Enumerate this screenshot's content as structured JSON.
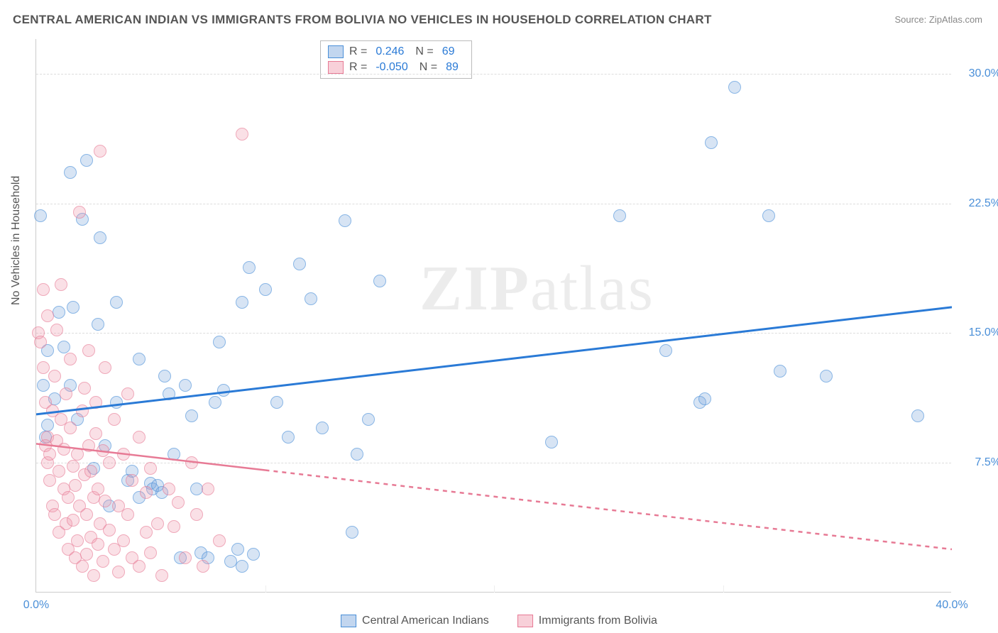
{
  "title": "CENTRAL AMERICAN INDIAN VS IMMIGRANTS FROM BOLIVIA NO VEHICLES IN HOUSEHOLD CORRELATION CHART",
  "source": "Source: ZipAtlas.com",
  "ylabel": "No Vehicles in Household",
  "watermark_a": "ZIP",
  "watermark_b": "atlas",
  "chart": {
    "type": "scatter",
    "xlim": [
      0,
      40
    ],
    "ylim": [
      0,
      32
    ],
    "xticks": [
      {
        "v": 0,
        "label": "0.0%"
      },
      {
        "v": 40,
        "label": "40.0%"
      }
    ],
    "xtick_minor": [
      10,
      20,
      30
    ],
    "yticks": [
      {
        "v": 7.5,
        "label": "7.5%"
      },
      {
        "v": 15,
        "label": "15.0%"
      },
      {
        "v": 22.5,
        "label": "22.5%"
      },
      {
        "v": 30,
        "label": "30.0%"
      }
    ],
    "background_color": "#ffffff",
    "grid_color": "#dddddd",
    "marker_size": 18,
    "series": [
      {
        "name": "Central American Indians",
        "key": "blue",
        "fill": "rgba(120,165,220,0.45)",
        "stroke": "#4a8fd8",
        "R": "0.246",
        "N": "69",
        "regression": {
          "x1": 0,
          "y1": 10.3,
          "x2": 40,
          "y2": 16.5,
          "solid_to": 40,
          "color": "#2a7ad6",
          "width": 3
        },
        "points": [
          [
            0.2,
            21.8
          ],
          [
            0.5,
            14.0
          ],
          [
            0.3,
            12.0
          ],
          [
            0.4,
            9.0
          ],
          [
            0.5,
            9.7
          ],
          [
            0.8,
            11.2
          ],
          [
            1.0,
            16.2
          ],
          [
            1.2,
            14.2
          ],
          [
            1.5,
            24.3
          ],
          [
            1.5,
            12.0
          ],
          [
            1.6,
            16.5
          ],
          [
            1.8,
            10.0
          ],
          [
            2.0,
            21.6
          ],
          [
            2.2,
            25.0
          ],
          [
            2.5,
            7.2
          ],
          [
            2.7,
            15.5
          ],
          [
            2.8,
            20.5
          ],
          [
            3.0,
            8.5
          ],
          [
            3.5,
            11.0
          ],
          [
            3.5,
            16.8
          ],
          [
            4.0,
            6.5
          ],
          [
            4.2,
            7.0
          ],
          [
            4.5,
            5.5
          ],
          [
            4.5,
            13.5
          ],
          [
            5.0,
            6.3
          ],
          [
            5.1,
            6.0
          ],
          [
            5.3,
            6.2
          ],
          [
            5.5,
            5.8
          ],
          [
            5.8,
            11.5
          ],
          [
            6.0,
            8.0
          ],
          [
            6.3,
            2.0
          ],
          [
            6.5,
            12.0
          ],
          [
            6.8,
            10.2
          ],
          [
            7.0,
            6.0
          ],
          [
            7.2,
            2.3
          ],
          [
            7.5,
            2.0
          ],
          [
            7.8,
            11.0
          ],
          [
            8.0,
            14.5
          ],
          [
            8.2,
            11.7
          ],
          [
            8.5,
            1.8
          ],
          [
            8.8,
            2.5
          ],
          [
            9.0,
            1.5
          ],
          [
            9.3,
            18.8
          ],
          [
            9.5,
            2.2
          ],
          [
            10.0,
            17.5
          ],
          [
            10.5,
            11.0
          ],
          [
            11.0,
            9.0
          ],
          [
            11.5,
            19.0
          ],
          [
            12.0,
            17.0
          ],
          [
            12.5,
            9.5
          ],
          [
            13.5,
            21.5
          ],
          [
            13.8,
            3.5
          ],
          [
            14.0,
            8.0
          ],
          [
            14.5,
            10.0
          ],
          [
            15.0,
            18.0
          ],
          [
            22.5,
            8.7
          ],
          [
            25.5,
            21.8
          ],
          [
            27.5,
            14.0
          ],
          [
            29.0,
            11.0
          ],
          [
            29.2,
            11.2
          ],
          [
            29.5,
            26.0
          ],
          [
            30.5,
            29.2
          ],
          [
            32.0,
            21.8
          ],
          [
            32.5,
            12.8
          ],
          [
            34.5,
            12.5
          ],
          [
            38.5,
            10.2
          ],
          [
            9.0,
            16.8
          ],
          [
            3.2,
            5.0
          ],
          [
            5.6,
            12.5
          ]
        ]
      },
      {
        "name": "Immigrants from Bolivia",
        "key": "pink",
        "fill": "rgba(240,150,170,0.45)",
        "stroke": "#e77a95",
        "R": "-0.050",
        "N": "89",
        "regression": {
          "x1": 0,
          "y1": 8.6,
          "x2": 40,
          "y2": 2.5,
          "solid_to": 10,
          "color": "#e77a95",
          "width": 2.5
        },
        "points": [
          [
            0.1,
            15.0
          ],
          [
            0.2,
            14.5
          ],
          [
            0.3,
            13.0
          ],
          [
            0.3,
            17.5
          ],
          [
            0.4,
            11.0
          ],
          [
            0.4,
            8.5
          ],
          [
            0.5,
            9.0
          ],
          [
            0.5,
            7.5
          ],
          [
            0.5,
            16.0
          ],
          [
            0.6,
            8.0
          ],
          [
            0.6,
            6.5
          ],
          [
            0.7,
            10.5
          ],
          [
            0.7,
            5.0
          ],
          [
            0.8,
            12.5
          ],
          [
            0.8,
            4.5
          ],
          [
            0.9,
            8.8
          ],
          [
            0.9,
            15.2
          ],
          [
            1.0,
            7.0
          ],
          [
            1.0,
            3.5
          ],
          [
            1.1,
            10.0
          ],
          [
            1.1,
            17.8
          ],
          [
            1.2,
            6.0
          ],
          [
            1.2,
            8.3
          ],
          [
            1.3,
            4.0
          ],
          [
            1.3,
            11.5
          ],
          [
            1.4,
            5.5
          ],
          [
            1.4,
            2.5
          ],
          [
            1.5,
            9.5
          ],
          [
            1.5,
            13.5
          ],
          [
            1.6,
            4.2
          ],
          [
            1.6,
            7.3
          ],
          [
            1.7,
            6.2
          ],
          [
            1.7,
            2.0
          ],
          [
            1.8,
            8.0
          ],
          [
            1.8,
            3.0
          ],
          [
            1.9,
            22.0
          ],
          [
            1.9,
            5.0
          ],
          [
            2.0,
            10.5
          ],
          [
            2.0,
            1.5
          ],
          [
            2.1,
            6.8
          ],
          [
            2.1,
            11.8
          ],
          [
            2.2,
            4.5
          ],
          [
            2.2,
            2.2
          ],
          [
            2.3,
            8.5
          ],
          [
            2.3,
            14.0
          ],
          [
            2.4,
            3.2
          ],
          [
            2.4,
            7.0
          ],
          [
            2.5,
            5.5
          ],
          [
            2.5,
            1.0
          ],
          [
            2.6,
            9.2
          ],
          [
            2.6,
            11.0
          ],
          [
            2.7,
            2.8
          ],
          [
            2.7,
            6.0
          ],
          [
            2.8,
            25.5
          ],
          [
            2.8,
            4.0
          ],
          [
            2.9,
            8.2
          ],
          [
            2.9,
            1.8
          ],
          [
            3.0,
            5.3
          ],
          [
            3.0,
            13.0
          ],
          [
            3.2,
            3.6
          ],
          [
            3.2,
            7.5
          ],
          [
            3.4,
            2.5
          ],
          [
            3.4,
            10.0
          ],
          [
            3.6,
            5.0
          ],
          [
            3.6,
            1.2
          ],
          [
            3.8,
            8.0
          ],
          [
            3.8,
            3.0
          ],
          [
            4.0,
            4.5
          ],
          [
            4.0,
            11.5
          ],
          [
            4.2,
            2.0
          ],
          [
            4.2,
            6.5
          ],
          [
            4.5,
            9.0
          ],
          [
            4.5,
            1.5
          ],
          [
            4.8,
            5.8
          ],
          [
            4.8,
            3.5
          ],
          [
            5.0,
            7.2
          ],
          [
            5.0,
            2.3
          ],
          [
            5.3,
            4.0
          ],
          [
            5.5,
            1.0
          ],
          [
            5.8,
            6.0
          ],
          [
            6.0,
            3.8
          ],
          [
            6.2,
            5.2
          ],
          [
            6.5,
            2.0
          ],
          [
            6.8,
            7.5
          ],
          [
            7.0,
            4.5
          ],
          [
            7.3,
            1.5
          ],
          [
            7.5,
            6.0
          ],
          [
            8.0,
            3.0
          ],
          [
            9.0,
            26.5
          ]
        ]
      }
    ]
  },
  "legend_top": {
    "Rlabel": "R =",
    "Nlabel": "N ="
  },
  "legend_bottom": {
    "a": "Central American Indians",
    "b": "Immigrants from Bolivia"
  }
}
